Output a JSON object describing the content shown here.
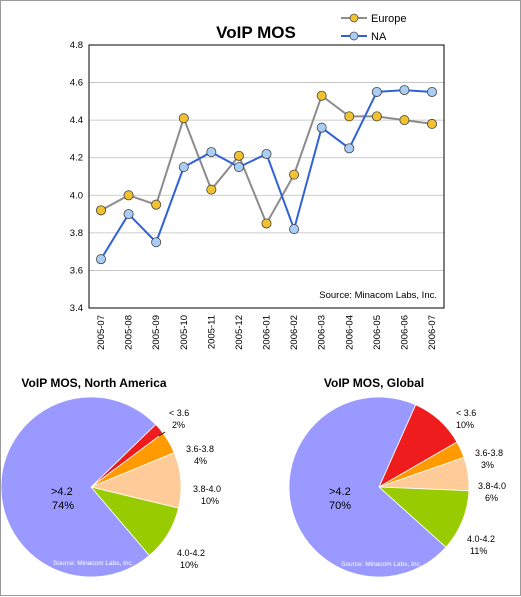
{
  "chart_data": [
    {
      "type": "line",
      "title": "VoIP MOS",
      "source": "Source: Minacom Labs, Inc.",
      "categories": [
        "2005-07",
        "2005-08",
        "2005-09",
        "2005-10",
        "2005-11",
        "2005-12",
        "2006-01",
        "2006-02",
        "2006-03",
        "2006-04",
        "2006-05",
        "2006-06",
        "2006-07"
      ],
      "ylim": [
        3.4,
        4.8
      ],
      "yticks": [
        "3.4",
        "3.6",
        "3.8",
        "4.0",
        "4.2",
        "4.4",
        "4.6",
        "4.8"
      ],
      "grid": true,
      "legend": "top-right",
      "series": [
        {
          "name": "Europe",
          "line_color": "#8c8c8c",
          "marker_color": "#f2c12e",
          "values": [
            3.92,
            4.0,
            3.95,
            4.41,
            4.03,
            4.21,
            3.85,
            4.11,
            4.53,
            4.42,
            4.42,
            4.4,
            4.38
          ]
        },
        {
          "name": "NA",
          "line_color": "#2f62d6",
          "marker_color": "#a9cdf5",
          "values": [
            3.66,
            3.9,
            3.75,
            4.15,
            4.23,
            4.15,
            4.22,
            3.82,
            4.36,
            4.25,
            4.55,
            4.56,
            4.55
          ]
        }
      ]
    },
    {
      "type": "pie",
      "title": "VoIP MOS, North America",
      "source": "Source: Minacom Labs, Inc.",
      "slices": [
        {
          "label": "< 3.6",
          "value": 2,
          "pct": "2%",
          "color": "#ee1c1c"
        },
        {
          "label": "3.6-3.8",
          "value": 4,
          "pct": "4%",
          "color": "#ff9a00"
        },
        {
          "label": "3.8-4.0",
          "value": 10,
          "pct": "10%",
          "color": "#ffcc99"
        },
        {
          "label": "4.0-4.2",
          "value": 10,
          "pct": "10%",
          "color": "#99cc00"
        },
        {
          "label": ">4.2",
          "value": 74,
          "pct": "74%",
          "color": "#9999ff"
        }
      ]
    },
    {
      "type": "pie",
      "title": "VoIP MOS, Global",
      "source": "Source: Minacom Labs, Inc.",
      "slices": [
        {
          "label": "< 3.6",
          "value": 10,
          "pct": "10%",
          "color": "#ee1c1c"
        },
        {
          "label": "3.6-3.8",
          "value": 3,
          "pct": "3%",
          "color": "#ff9a00"
        },
        {
          "label": "3.8-4.0",
          "value": 6,
          "pct": "6%",
          "color": "#ffcc99"
        },
        {
          "label": "4.0-4.2",
          "value": 11,
          "pct": "11%",
          "color": "#99cc00"
        },
        {
          "label": ">4.2",
          "value": 70,
          "pct": "70%",
          "color": "#9999ff"
        }
      ]
    }
  ]
}
